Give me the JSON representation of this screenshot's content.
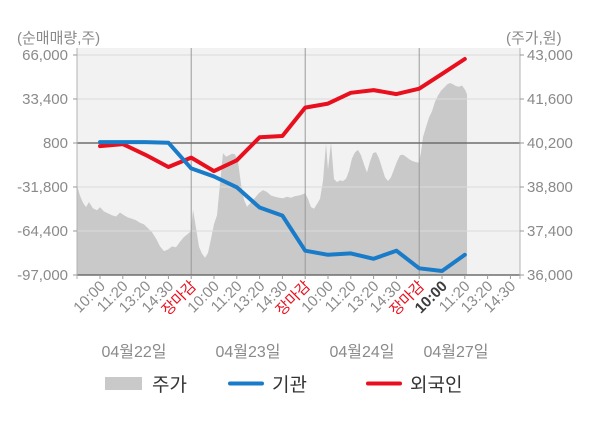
{
  "titles": {
    "left_axis_unit": "(순매매량,주)",
    "right_axis_unit": "(주가,원)"
  },
  "axes": {
    "left_ticks": [
      {
        "label": "66,000",
        "value": 66000
      },
      {
        "label": "33,400",
        "value": 33400
      },
      {
        "label": "800",
        "value": 800
      },
      {
        "label": "-31,800",
        "value": -31800
      },
      {
        "label": "-64,400",
        "value": -64400
      },
      {
        "label": "-97,000",
        "value": -97000
      }
    ],
    "right_ticks": [
      {
        "label": "43,000",
        "value": 43000
      },
      {
        "label": "41,600",
        "value": 41600
      },
      {
        "label": "40,200",
        "value": 40200
      },
      {
        "label": "38,800",
        "value": 38800
      },
      {
        "label": "37,400",
        "value": 37400
      },
      {
        "label": "36,000",
        "value": 36000
      }
    ]
  },
  "chart_data": {
    "type": "line",
    "subtype": "dual-axis combo: gray price area (right axis) + two cumulative net-volume lines (left axis)",
    "left_axis": {
      "title": "(순매매량,주)",
      "range": [
        -97000,
        66000
      ],
      "grid_step": 32600,
      "zero_gridline_value": 800
    },
    "right_axis": {
      "title": "(주가,원)",
      "range": [
        36000,
        43000
      ],
      "grid_step": 1400
    },
    "grid": "horizontal gridlines on; vertical day-separator lines at each 장마감 tick",
    "x_ticks": [
      {
        "label": "10:00",
        "style": "normal"
      },
      {
        "label": "11:20",
        "style": "normal"
      },
      {
        "label": "13:20",
        "style": "normal"
      },
      {
        "label": "14:30",
        "style": "normal"
      },
      {
        "label": "장마감",
        "style": "close"
      },
      {
        "label": "10:00",
        "style": "normal"
      },
      {
        "label": "11:20",
        "style": "normal"
      },
      {
        "label": "13:20",
        "style": "normal"
      },
      {
        "label": "14:30",
        "style": "normal"
      },
      {
        "label": "장마감",
        "style": "close"
      },
      {
        "label": "10:00",
        "style": "normal"
      },
      {
        "label": "11:20",
        "style": "normal"
      },
      {
        "label": "13:20",
        "style": "normal"
      },
      {
        "label": "14:30",
        "style": "normal"
      },
      {
        "label": "장마감",
        "style": "close"
      },
      {
        "label": "10:00",
        "style": "bold"
      },
      {
        "label": "11:20",
        "style": "normal"
      },
      {
        "label": "13:20",
        "style": "normal"
      },
      {
        "label": "14:30",
        "style": "normal"
      }
    ],
    "day_groups": [
      {
        "label": "04월22일",
        "ticks": 5
      },
      {
        "label": "04월23일",
        "ticks": 5
      },
      {
        "label": "04월24일",
        "ticks": 5
      },
      {
        "label": "04월27일",
        "ticks": 4
      }
    ],
    "series": [
      {
        "name": "주가",
        "type": "area",
        "axis": "right",
        "unit": "원",
        "note": "intraday price curve, sampled [x_px, won]; data ends at 11:20 of 04월27일",
        "points": [
          [
            77,
            38850
          ],
          [
            80,
            38520
          ],
          [
            83,
            38300
          ],
          [
            86,
            38160
          ],
          [
            89,
            38320
          ],
          [
            93,
            38120
          ],
          [
            97,
            38060
          ],
          [
            100,
            38160
          ],
          [
            104,
            38020
          ],
          [
            108,
            37960
          ],
          [
            112,
            37900
          ],
          [
            116,
            37860
          ],
          [
            120,
            37990
          ],
          [
            124,
            37900
          ],
          [
            128,
            37830
          ],
          [
            132,
            37790
          ],
          [
            136,
            37740
          ],
          [
            140,
            37660
          ],
          [
            144,
            37610
          ],
          [
            148,
            37490
          ],
          [
            152,
            37360
          ],
          [
            156,
            37160
          ],
          [
            160,
            36910
          ],
          [
            164,
            36760
          ],
          [
            168,
            36810
          ],
          [
            172,
            36910
          ],
          [
            176,
            36880
          ],
          [
            180,
            37060
          ],
          [
            184,
            37210
          ],
          [
            188,
            37310
          ],
          [
            191,
            37390
          ],
          [
            193,
            38080
          ],
          [
            196,
            37500
          ],
          [
            199,
            36900
          ],
          [
            202,
            36680
          ],
          [
            205,
            36550
          ],
          [
            208,
            36700
          ],
          [
            211,
            37150
          ],
          [
            214,
            37620
          ],
          [
            217,
            37900
          ],
          [
            220,
            38900
          ],
          [
            223,
            39880
          ],
          [
            226,
            39760
          ],
          [
            229,
            39810
          ],
          [
            232,
            39860
          ],
          [
            235,
            39840
          ],
          [
            238,
            39600
          ],
          [
            241,
            38900
          ],
          [
            244,
            38400
          ],
          [
            247,
            38170
          ],
          [
            251,
            38310
          ],
          [
            255,
            38460
          ],
          [
            259,
            38610
          ],
          [
            263,
            38700
          ],
          [
            267,
            38640
          ],
          [
            271,
            38530
          ],
          [
            275,
            38490
          ],
          [
            279,
            38460
          ],
          [
            283,
            38440
          ],
          [
            287,
            38490
          ],
          [
            291,
            38460
          ],
          [
            295,
            38510
          ],
          [
            299,
            38530
          ],
          [
            303,
            38570
          ],
          [
            305,
            38610
          ],
          [
            308,
            38420
          ],
          [
            311,
            38160
          ],
          [
            314,
            38110
          ],
          [
            317,
            38260
          ],
          [
            320,
            38420
          ],
          [
            323,
            39000
          ],
          [
            326,
            40180
          ],
          [
            328,
            39350
          ],
          [
            331,
            40230
          ],
          [
            334,
            39050
          ],
          [
            337,
            38960
          ],
          [
            340,
            39010
          ],
          [
            343,
            38990
          ],
          [
            346,
            39060
          ],
          [
            349,
            39310
          ],
          [
            352,
            39710
          ],
          [
            355,
            39900
          ],
          [
            358,
            39980
          ],
          [
            361,
            39810
          ],
          [
            364,
            39520
          ],
          [
            367,
            39260
          ],
          [
            370,
            39610
          ],
          [
            373,
            39880
          ],
          [
            376,
            39910
          ],
          [
            379,
            39710
          ],
          [
            382,
            39410
          ],
          [
            385,
            39110
          ],
          [
            388,
            38990
          ],
          [
            391,
            39110
          ],
          [
            394,
            39360
          ],
          [
            397,
            39610
          ],
          [
            400,
            39810
          ],
          [
            403,
            39830
          ],
          [
            406,
            39760
          ],
          [
            409,
            39690
          ],
          [
            412,
            39630
          ],
          [
            415,
            39600
          ],
          [
            419,
            39570
          ],
          [
            421,
            39900
          ],
          [
            423,
            40390
          ],
          [
            426,
            40710
          ],
          [
            429,
            41010
          ],
          [
            432,
            41210
          ],
          [
            435,
            41510
          ],
          [
            438,
            41710
          ],
          [
            441,
            41860
          ],
          [
            444,
            41960
          ],
          [
            447,
            42060
          ],
          [
            450,
            42110
          ],
          [
            453,
            42070
          ],
          [
            456,
            42010
          ],
          [
            459,
            41990
          ],
          [
            462,
            42030
          ],
          [
            465,
            41900
          ],
          [
            467,
            41750
          ]
        ]
      },
      {
        "name": "기관",
        "type": "line",
        "axis": "left",
        "unit": "주",
        "note": "one value per x tick, ends at 11:20 of 04월27일",
        "values": [
          1500,
          1500,
          1500,
          1000,
          -18000,
          -24000,
          -32000,
          -47000,
          -53000,
          -79000,
          -82000,
          -81000,
          -85000,
          -79000,
          -92000,
          -94000,
          -82000
        ]
      },
      {
        "name": "외국인",
        "type": "line",
        "axis": "left",
        "unit": "주",
        "note": "one value per x tick, ends at 11:20 of 04월27일",
        "values": [
          -1500,
          0,
          -8000,
          -17000,
          -10000,
          -20000,
          -12000,
          5000,
          6000,
          27000,
          30000,
          38000,
          40000,
          37000,
          41000,
          52000,
          63000
        ]
      }
    ],
    "legend_position": "bottom"
  },
  "legend": [
    {
      "label": "주가",
      "swatch": "area"
    },
    {
      "label": "기관",
      "swatch": "line"
    },
    {
      "label": "외국인",
      "swatch": "line"
    }
  ],
  "colors": {
    "institution_blue": "#1a7cc8",
    "foreigner_red": "#e8101e",
    "price_area": "#c9c9c9",
    "plot_bg": "#f2f2f2",
    "grid": "#dadada",
    "axis_dark": "#6e6e6e",
    "axis_side": "#b3b3b3",
    "separator": "#9a9a9a",
    "tick_mark": "#999999",
    "label_gray": "#8a8a8a",
    "close_label_red": "#e8101e",
    "bold_label": "#3c3c3c",
    "legend_text": "#333333"
  }
}
